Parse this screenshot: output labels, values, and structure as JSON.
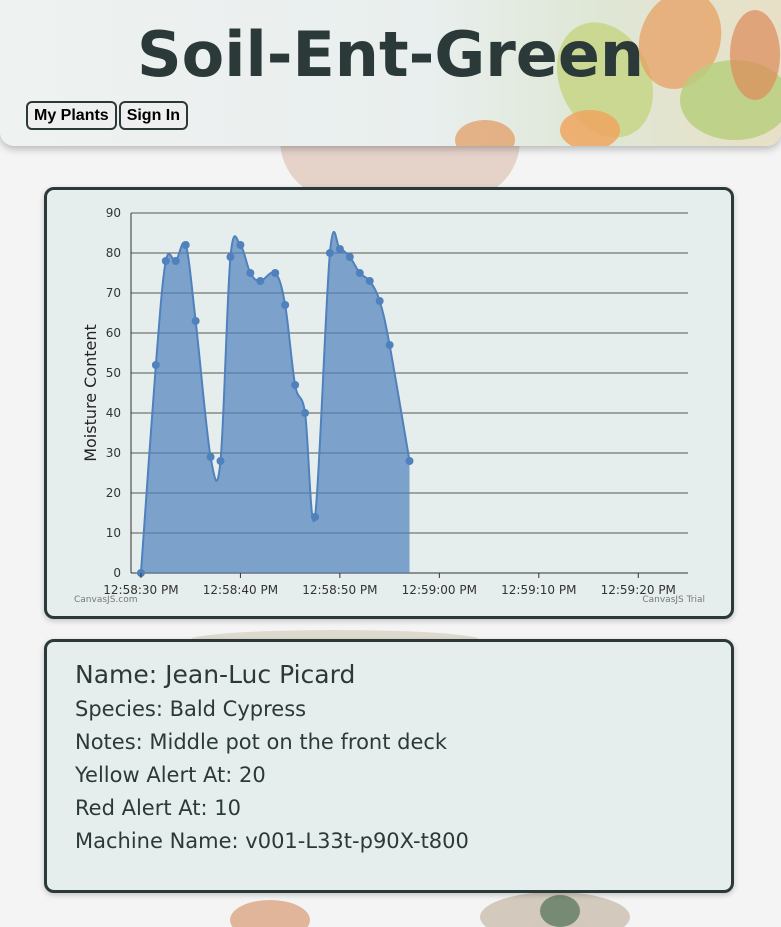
{
  "header": {
    "title": "Soil-Ent-Green",
    "nav": [
      {
        "label": "My Plants"
      },
      {
        "label": "Sign In"
      }
    ]
  },
  "chart_data": {
    "type": "area",
    "ylabel": "Moisture Content",
    "xlabel": "",
    "ylim": [
      0,
      90
    ],
    "yticks": [
      0,
      10,
      20,
      30,
      40,
      50,
      60,
      70,
      80,
      90
    ],
    "xticks": [
      "12:58:30 PM",
      "12:58:40 PM",
      "12:58:50 PM",
      "12:59:00 PM",
      "12:59:10 PM",
      "12:59:20 PM"
    ],
    "xtick_seconds": [
      30,
      40,
      50,
      60,
      70,
      80
    ],
    "xlim_seconds": [
      29,
      85
    ],
    "grid": true,
    "color": "#4f81bd",
    "credit_left": "CanvasJS.com",
    "credit_right": "CanvasJS Trial",
    "points": [
      {
        "t": 30,
        "y": 0
      },
      {
        "t": 31.5,
        "y": 52
      },
      {
        "t": 32.5,
        "y": 78
      },
      {
        "t": 33.5,
        "y": 78
      },
      {
        "t": 34.5,
        "y": 82
      },
      {
        "t": 35.5,
        "y": 63
      },
      {
        "t": 37,
        "y": 29
      },
      {
        "t": 38,
        "y": 28
      },
      {
        "t": 39,
        "y": 79
      },
      {
        "t": 40,
        "y": 82
      },
      {
        "t": 41,
        "y": 75
      },
      {
        "t": 42,
        "y": 73
      },
      {
        "t": 43.5,
        "y": 75
      },
      {
        "t": 44.5,
        "y": 67
      },
      {
        "t": 45.5,
        "y": 47
      },
      {
        "t": 46.5,
        "y": 40
      },
      {
        "t": 47.5,
        "y": 14
      },
      {
        "t": 49,
        "y": 80
      },
      {
        "t": 50,
        "y": 81
      },
      {
        "t": 51,
        "y": 79
      },
      {
        "t": 52,
        "y": 75
      },
      {
        "t": 53,
        "y": 73
      },
      {
        "t": 54,
        "y": 68
      },
      {
        "t": 55,
        "y": 57
      },
      {
        "t": 57,
        "y": 28
      }
    ]
  },
  "plant": {
    "name_line": "Name: Jean-Luc Picard",
    "species_line": "Species: Bald Cypress",
    "notes_line": "Notes: Middle pot on the front deck",
    "yellow_line": "Yellow Alert At: 20",
    "red_line": "Red Alert At: 10",
    "machine_line": "Machine Name: v001-L33t-p90X-t800"
  }
}
